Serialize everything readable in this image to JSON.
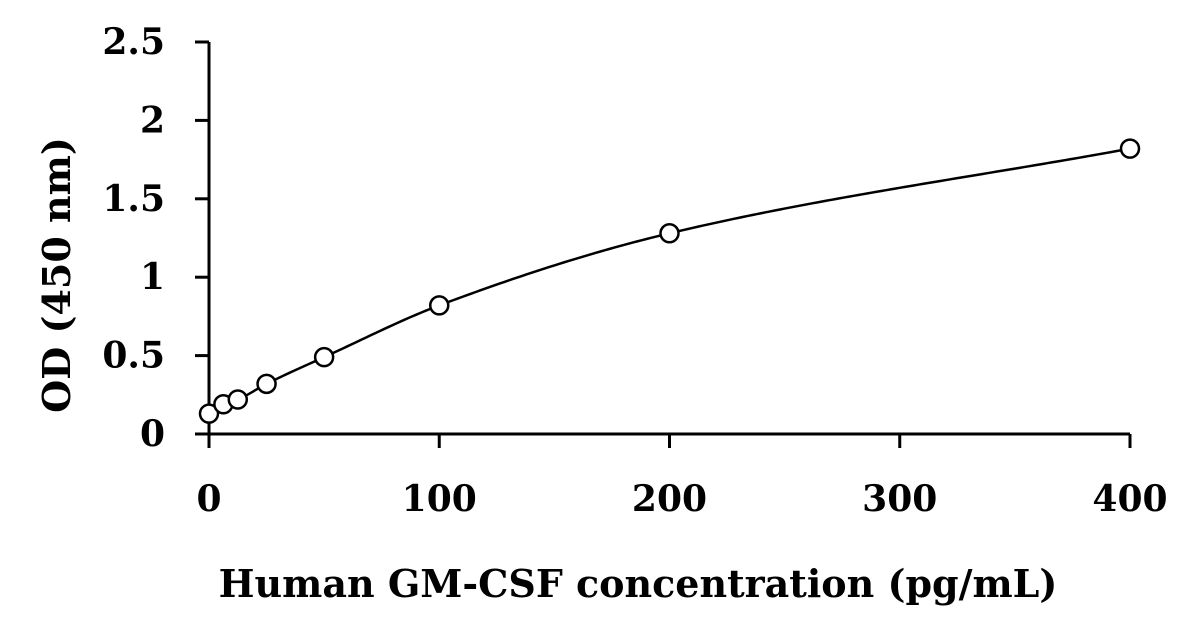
{
  "chart_data": {
    "type": "scatter",
    "title": "",
    "xlabel": "Human  GM-CSF concentration (pg/mL)",
    "ylabel": "OD (450 nm)",
    "xlim": [
      0,
      400
    ],
    "ylim": [
      0,
      2.5
    ],
    "xticks": [
      0,
      100,
      200,
      300,
      400
    ],
    "yticks": [
      0,
      0.5,
      1,
      1.5,
      2,
      2.5
    ],
    "xtick_labels": [
      "0",
      "100",
      "200",
      "300",
      "400"
    ],
    "ytick_labels": [
      "0",
      "0.5",
      "1",
      "1.5",
      "2",
      "2.5"
    ],
    "grid": false,
    "legend": "none",
    "trendline": "smooth fitted curve through points",
    "series": [
      {
        "marker": "open-circle",
        "x": [
          0,
          6.25,
          12.5,
          25,
          50,
          100,
          200,
          400
        ],
        "y": [
          0.13,
          0.19,
          0.22,
          0.32,
          0.49,
          0.82,
          1.28,
          1.82
        ]
      }
    ]
  }
}
